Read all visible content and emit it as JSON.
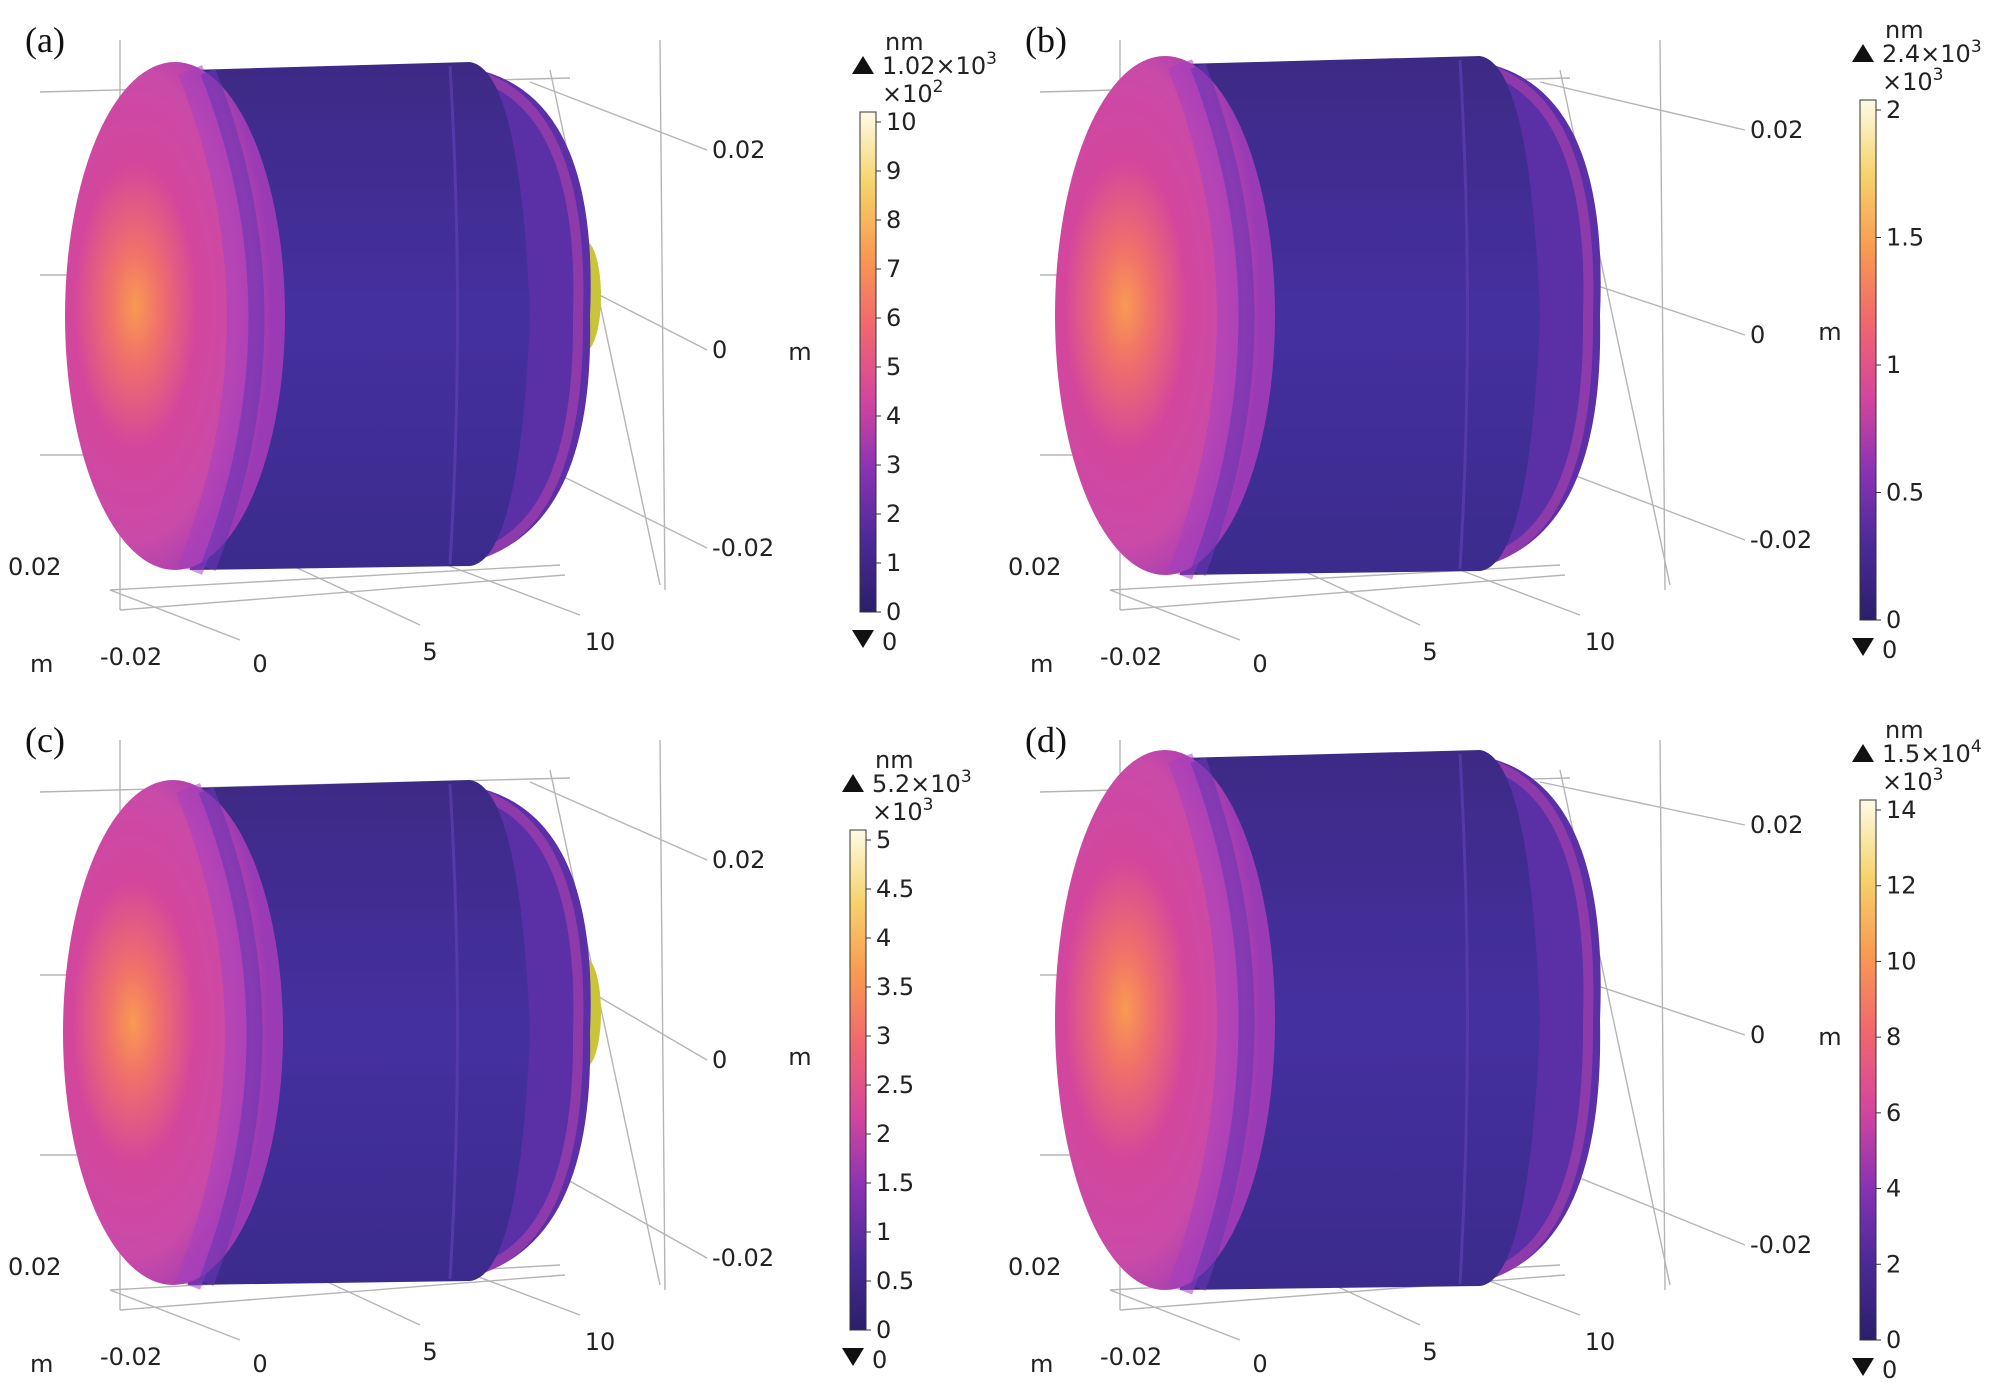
{
  "panels": [
    {
      "label": "(a)",
      "axis_unit": "m",
      "z_ticks": [
        "0.02",
        "0",
        "-0.02"
      ],
      "y_ticks": [
        "0.02",
        "-0.02"
      ],
      "x_ticks": [
        "0",
        "5",
        "10"
      ],
      "colorbar": {
        "unit": "nm",
        "max_label": "1.02×10",
        "max_exp": "3",
        "scale_label": "×10",
        "scale_exp": "2",
        "ticks": [
          "10",
          "9",
          "8",
          "7",
          "6",
          "5",
          "4",
          "3",
          "2",
          "1",
          "0"
        ],
        "min_label": "0"
      }
    },
    {
      "label": "(b)",
      "axis_unit": "m",
      "z_ticks": [
        "0.02",
        "0",
        "-0.02"
      ],
      "y_ticks": [
        "0.02",
        "-0.02"
      ],
      "x_ticks": [
        "0",
        "5",
        "10"
      ],
      "colorbar": {
        "unit": "nm",
        "max_label": "2.4×10",
        "max_exp": "3",
        "scale_label": "×10",
        "scale_exp": "3",
        "ticks": [
          "2",
          "1.5",
          "1",
          "0.5",
          "0"
        ],
        "min_label": "0"
      }
    },
    {
      "label": "(c)",
      "axis_unit": "m",
      "z_ticks": [
        "0.02",
        "0",
        "-0.02"
      ],
      "y_ticks": [
        "0.02",
        "-0.02"
      ],
      "x_ticks": [
        "0",
        "5",
        "10"
      ],
      "colorbar": {
        "unit": "nm",
        "max_label": "5.2×10",
        "max_exp": "3",
        "scale_label": "×10",
        "scale_exp": "3",
        "ticks": [
          "5",
          "4.5",
          "4",
          "3.5",
          "3",
          "2.5",
          "2",
          "1.5",
          "1",
          "0.5",
          "0"
        ],
        "min_label": "0"
      }
    },
    {
      "label": "(d)",
      "axis_unit": "m",
      "z_ticks": [
        "0.02",
        "0",
        "-0.02"
      ],
      "y_ticks": [
        "0.02",
        "-0.02"
      ],
      "x_ticks": [
        "0",
        "5",
        "10"
      ],
      "colorbar": {
        "unit": "nm",
        "max_label": "1.5×10",
        "max_exp": "4",
        "scale_label": "×10",
        "scale_exp": "3",
        "ticks": [
          "14",
          "12",
          "10",
          "8",
          "6",
          "4",
          "2",
          "0"
        ],
        "min_label": "0"
      }
    }
  ],
  "colormap": [
    "#2b1f6b",
    "#4a2a96",
    "#8a33b3",
    "#d4469c",
    "#f0676e",
    "#f99a52",
    "#f6d36b",
    "#fdfbe6"
  ]
}
